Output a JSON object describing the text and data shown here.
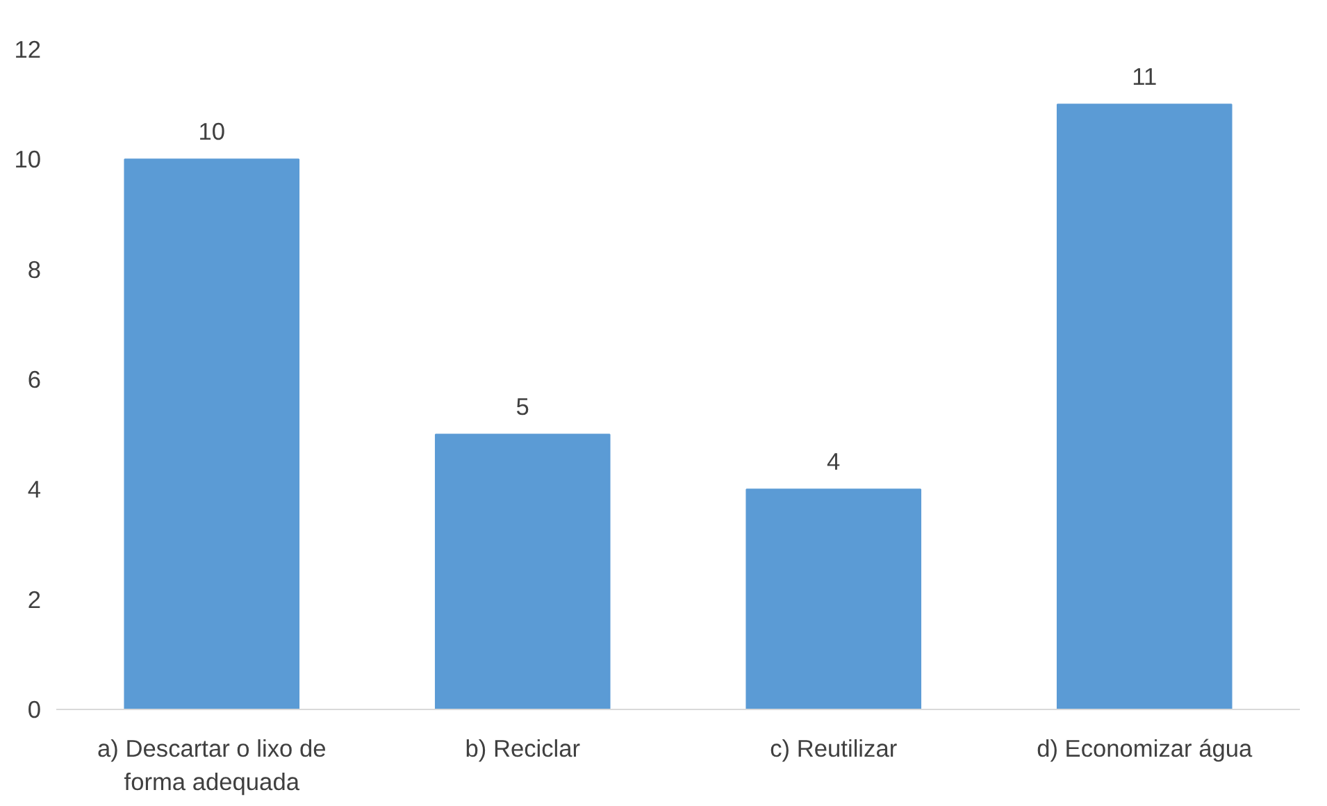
{
  "chart_data": {
    "type": "bar",
    "categories": [
      "a) Descartar o lixo de forma adequada",
      "b) Reciclar",
      "c) Reutilizar",
      "d) Economizar água"
    ],
    "values": [
      10,
      5,
      4,
      11
    ],
    "color": "#5b9bd5",
    "ylim": [
      0,
      12
    ],
    "yticks": [
      0,
      2,
      4,
      6,
      8,
      10,
      12
    ],
    "data_labels": true,
    "grid": false
  }
}
